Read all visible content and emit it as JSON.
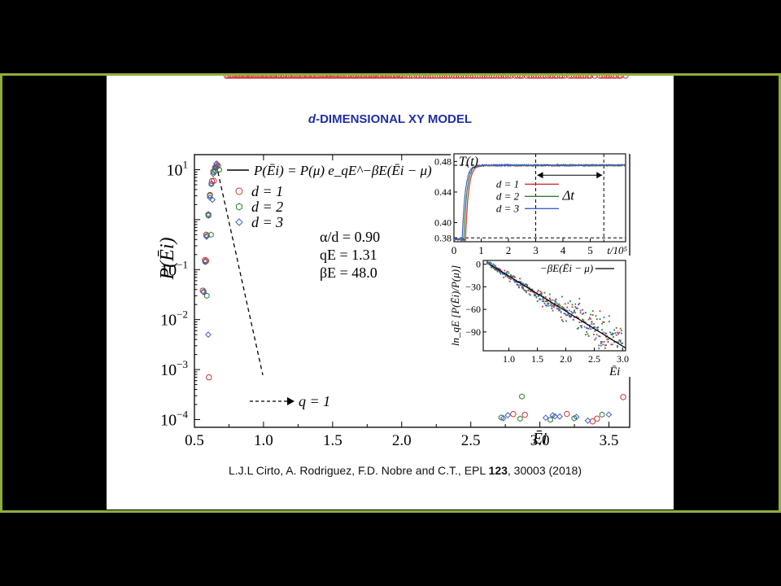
{
  "slide": {
    "title_italic": "d",
    "title_rest": "-DIMENSIONAL XY MODEL",
    "citation_pre": "L.J.L Cirto, A. Rodriguez, F.D. Nobre and C.T., EPL ",
    "citation_vol": "123",
    "citation_post": ", 30003 (2018)"
  },
  "colors": {
    "frame_border": "#8fae3c",
    "title": "#1f2fa8",
    "d1": "#cc3333",
    "d2": "#2e7d32",
    "d3": "#3f5fc9"
  },
  "chart_data": [
    {
      "type": "scatter",
      "scale": {
        "x": "linear",
        "y": "log"
      },
      "xlim": [
        0.5,
        3.65
      ],
      "ylim": [
        7e-05,
        20
      ],
      "x_ticks": [
        "0.5",
        "1.0",
        "1.5",
        "2.0",
        "2.5",
        "3.0",
        "3.5"
      ],
      "y_ticks": [
        {
          "value": 10,
          "base": "10",
          "exp": "1"
        },
        {
          "value": 0.1,
          "base": "10",
          "exp": "−1"
        },
        {
          "value": 0.01,
          "base": "10",
          "exp": "−2"
        },
        {
          "value": 0.001,
          "base": "10",
          "exp": "−3"
        },
        {
          "value": 0.0001,
          "base": "10",
          "exp": "−4"
        }
      ],
      "xlabel": "Ēi",
      "ylabel": "P(Ēi)",
      "legend": {
        "formula": "P(Ēi) = P(μ) e_qE^−βE(Ēi − μ)",
        "entries": [
          "d = 1",
          "d = 2",
          "d = 3"
        ]
      },
      "annotations": [
        "α/d = 0.90",
        "qE = 1.31",
        "βE = 48.0",
        "q = 1"
      ],
      "params": {
        "alpha_over_d": 0.9,
        "qE": 1.31,
        "betaE": 48.0,
        "mu": 0.66,
        "peak": 12
      },
      "series": [
        {
          "name": "d = 1",
          "marker": "circle"
        },
        {
          "name": "d = 2",
          "marker": "hexagon"
        },
        {
          "name": "d = 3",
          "marker": "diamond"
        }
      ]
    },
    {
      "type": "line",
      "xlim": [
        0,
        6.3
      ],
      "ylim": [
        0.375,
        0.49
      ],
      "x_ticks": [
        "0",
        "1",
        "2",
        "3",
        "4",
        "5"
      ],
      "y_ticks": [
        "0.38",
        "0.40",
        "0.44",
        "0.48"
      ],
      "ylabel": "T(t)",
      "xlabel": "t/10⁵",
      "annotation": "Δt",
      "legend": [
        "d = 1",
        "d = 2",
        "d = 3"
      ],
      "plateau": 0.475,
      "dashed_x": [
        3,
        5.5
      ]
    },
    {
      "type": "scatter",
      "xlim": [
        0.55,
        3.05
      ],
      "ylim": [
        -115,
        5
      ],
      "x_ticks": [
        "1.0",
        "1.5",
        "2.0",
        "2.5",
        "3.0"
      ],
      "y_ticks": [
        "0",
        "−30",
        "−60",
        "−90"
      ],
      "xlabel": "Ēi",
      "ylabel": "ln_qE [P(Ēi)/P(μ)]",
      "legend": "−βE(Ēi − μ)"
    }
  ]
}
